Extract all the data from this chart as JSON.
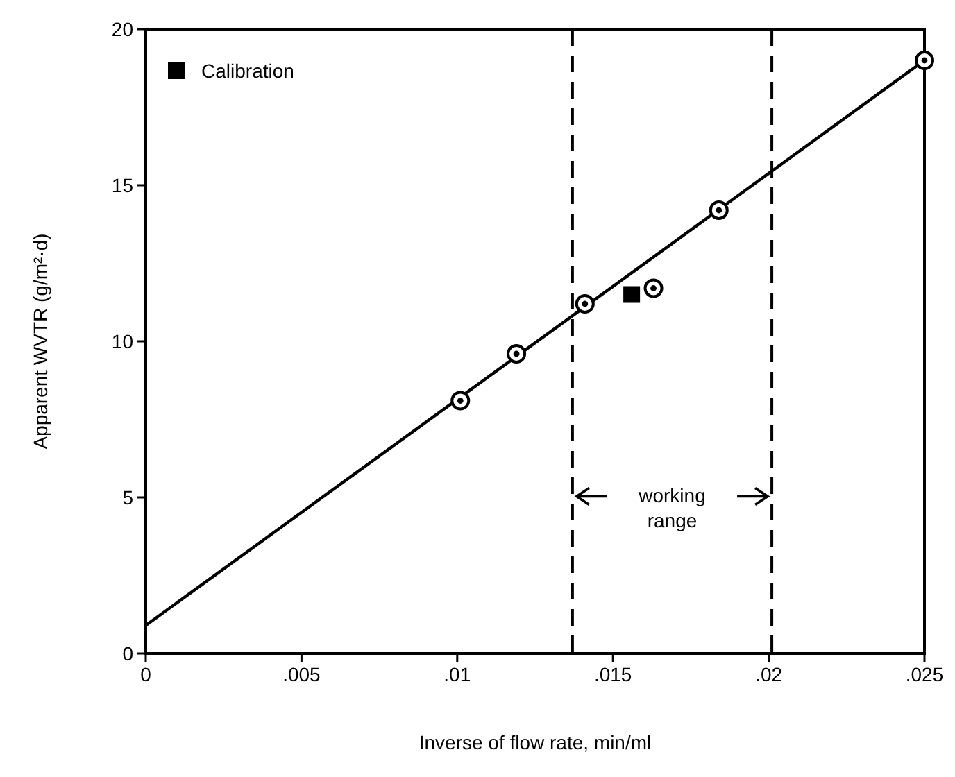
{
  "chart_data": {
    "type": "scatter",
    "xlabel": "Inverse of flow rate,  min/ml",
    "ylabel": "Apparent WVTR (g/m²·d)",
    "xlim": [
      0,
      0.025
    ],
    "ylim": [
      0,
      20
    ],
    "xticks": [
      0,
      {
        "value": 0.005,
        "label": ".005"
      },
      {
        "value": 0.01,
        "label": ".01"
      },
      {
        "value": 0.015,
        "label": ".015"
      },
      {
        "value": 0.02,
        "label": ".02"
      },
      {
        "value": 0.025,
        "label": ".025"
      }
    ],
    "yticks": [
      0,
      5,
      10,
      15,
      20
    ],
    "grid": false,
    "legend": "top left",
    "series": [
      {
        "type": "scatter",
        "marker": "circle",
        "color": "#000000",
        "x": [
          0.0101,
          0.0119,
          0.0141,
          0.0163,
          0.0184,
          0.025
        ],
        "values": [
          8.1,
          9.6,
          11.2,
          11.7,
          14.2,
          19.0
        ]
      },
      {
        "type": "scatter",
        "marker": "square",
        "name": "Calibration",
        "color": "#000000",
        "x": [
          0.0156
        ],
        "values": [
          11.5
        ]
      },
      {
        "type": "line",
        "line_style": "solid",
        "color": "#000000",
        "x": [
          0,
          0.025
        ],
        "values": [
          0.9,
          19.0
        ]
      }
    ],
    "ref_lines": [
      {
        "axis": "x",
        "value": 0.0137,
        "line_style": "dashed",
        "color": "#000000"
      },
      {
        "axis": "x",
        "value": 0.0201,
        "line_style": "dashed",
        "color": "#000000"
      }
    ],
    "annotations": [
      "working range"
    ]
  }
}
